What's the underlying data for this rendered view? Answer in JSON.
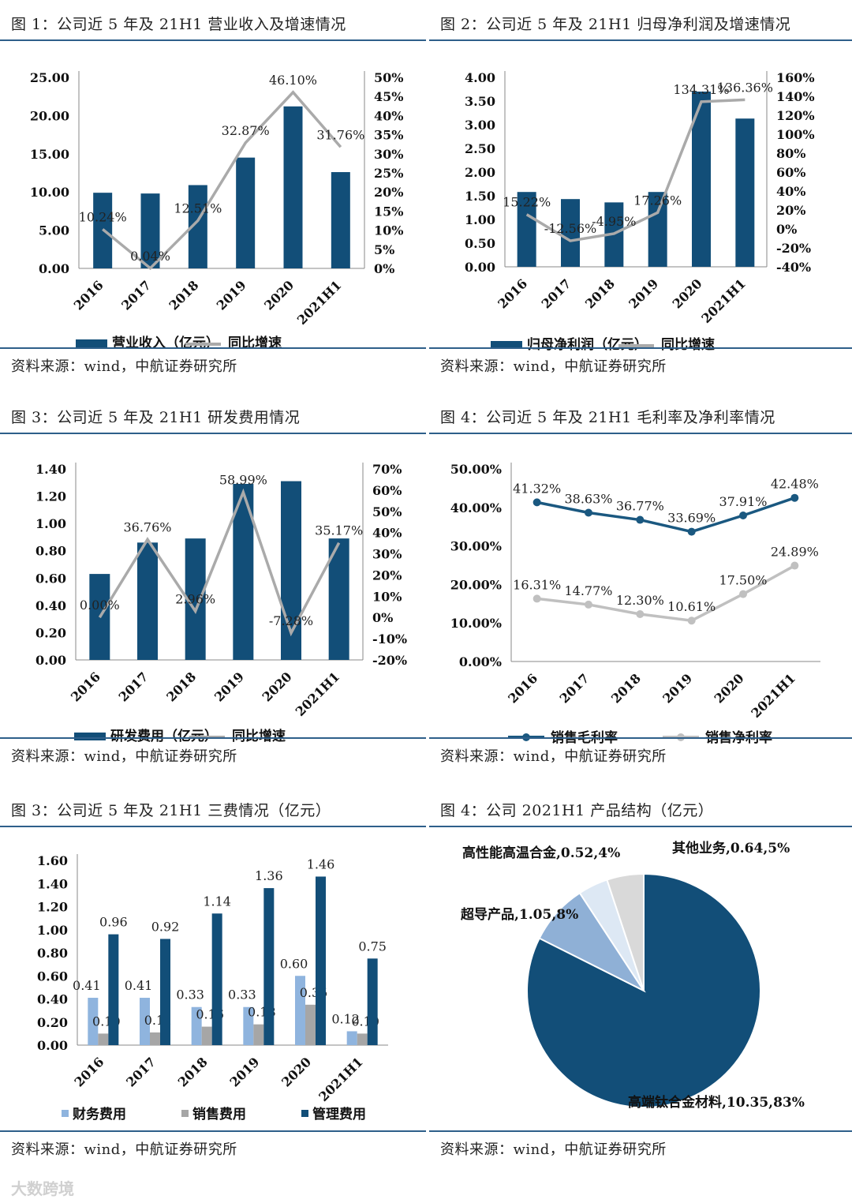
{
  "chart_data": [
    {
      "id": "c1",
      "type": "bar",
      "title": "图 1：公司近 5 年及 21H1 营业收入及增速情况",
      "source": "资料来源：wind，中航证券研究所",
      "categories": [
        "2016",
        "2017",
        "2018",
        "2019",
        "2020",
        "2021H1"
      ],
      "left_ticks": [
        "25.00",
        "20.00",
        "15.00",
        "10.00",
        "5.00",
        "0.00"
      ],
      "right_ticks": [
        "50%",
        "45%",
        "40%",
        "35%",
        "30%",
        "25%",
        "20%",
        "15%",
        "10%",
        "5%",
        "0%"
      ],
      "ylim": [
        0,
        25
      ],
      "y2lim": [
        0,
        50
      ],
      "series": [
        {
          "name": "营业收入（亿元）",
          "kind": "bar",
          "axis": "left",
          "color": "#124e78",
          "values": [
            9.9,
            9.8,
            10.9,
            14.5,
            21.2,
            12.6
          ]
        },
        {
          "name": "同比增速",
          "kind": "line",
          "axis": "right",
          "color": "#aaaaaa",
          "values": [
            10.24,
            0.04,
            12.51,
            32.87,
            46.1,
            31.76
          ],
          "labels": [
            "10.24%",
            "0.04%",
            "12.51%",
            "32.87%",
            "46.10%",
            "31.76%"
          ]
        }
      ]
    },
    {
      "id": "c2",
      "type": "bar",
      "title": "图 2：公司近 5 年及 21H1 归母净利润及增速情况",
      "source": "资料来源：wind，中航证券研究所",
      "categories": [
        "2016",
        "2017",
        "2018",
        "2019",
        "2020",
        "2021H1"
      ],
      "left_ticks": [
        "4.00",
        "3.50",
        "3.00",
        "2.50",
        "2.00",
        "1.50",
        "1.00",
        "0.50",
        "0.00"
      ],
      "right_ticks": [
        "160%",
        "140%",
        "120%",
        "100%",
        "80%",
        "60%",
        "40%",
        "20%",
        "0%",
        "-20%",
        "-40%"
      ],
      "ylim": [
        0,
        4
      ],
      "y2lim": [
        -40,
        160
      ],
      "series": [
        {
          "name": "归母净利润（亿元）",
          "kind": "bar",
          "axis": "left",
          "color": "#124e78",
          "values": [
            1.58,
            1.43,
            1.36,
            1.58,
            3.7,
            3.13
          ]
        },
        {
          "name": "同比增速",
          "kind": "line",
          "axis": "right",
          "color": "#aaaaaa",
          "values": [
            15.22,
            -12.56,
            -4.95,
            17.26,
            134.31,
            136.36
          ],
          "labels": [
            "15.22%",
            "-12.56%",
            "-4.95%",
            "17.26%",
            "134.31%",
            "136.36%"
          ]
        }
      ]
    },
    {
      "id": "c3",
      "type": "bar",
      "title": "图 3：公司近 5 年及 21H1 研发费用情况",
      "source": "资料来源：wind，中航证券研究所",
      "categories": [
        "2016",
        "2017",
        "2018",
        "2019",
        "2020",
        "2021H1"
      ],
      "left_ticks": [
        "1.40",
        "1.20",
        "1.00",
        "0.80",
        "0.60",
        "0.40",
        "0.20",
        "0.00"
      ],
      "right_ticks": [
        "70%",
        "60%",
        "50%",
        "40%",
        "30%",
        "20%",
        "10%",
        "0%",
        "-10%",
        "-20%"
      ],
      "ylim": [
        0,
        1.4
      ],
      "y2lim": [
        -20,
        70
      ],
      "series": [
        {
          "name": "研发费用（亿元）",
          "kind": "bar",
          "axis": "left",
          "color": "#124e78",
          "values": [
            0.63,
            0.86,
            0.89,
            1.29,
            1.31,
            0.89
          ]
        },
        {
          "name": "同比增速",
          "kind": "line",
          "axis": "right",
          "color": "#aaaaaa",
          "values": [
            0.0,
            36.76,
            2.96,
            58.99,
            -7.28,
            35.17
          ],
          "labels": [
            "0.00%",
            "36.76%",
            "2.96%",
            "58.99%",
            "-7.28%",
            "35.17%"
          ]
        }
      ]
    },
    {
      "id": "c4",
      "type": "line",
      "title": "图 4：公司近 5 年及 21H1 毛利率及净利率情况",
      "source": "资料来源：wind，中航证券研究所",
      "categories": [
        "2016",
        "2017",
        "2018",
        "2019",
        "2020",
        "2021H1"
      ],
      "left_ticks": [
        "50.00%",
        "40.00%",
        "30.00%",
        "20.00%",
        "10.00%",
        "0.00%"
      ],
      "ylim": [
        0,
        50
      ],
      "series": [
        {
          "name": "销售毛利率",
          "kind": "line",
          "color": "#1a5880",
          "values": [
            41.32,
            38.63,
            36.77,
            33.69,
            37.91,
            42.48
          ],
          "labels": [
            "41.32%",
            "38.63%",
            "36.77%",
            "33.69%",
            "37.91%",
            "42.48%"
          ]
        },
        {
          "name": "销售净利率",
          "kind": "line",
          "color": "#c0c0c0",
          "values": [
            16.31,
            14.77,
            12.3,
            10.61,
            17.5,
            24.89
          ],
          "labels": [
            "16.31%",
            "14.77%",
            "12.30%",
            "10.61%",
            "17.50%",
            "24.89%"
          ]
        }
      ]
    },
    {
      "id": "c5",
      "type": "bar",
      "title": "图 3：公司近 5 年及 21H1 三费情况（亿元）",
      "source": "资料来源：wind，中航证券研究所",
      "categories": [
        "2016",
        "2017",
        "2018",
        "2019",
        "2020",
        "2021H1"
      ],
      "left_ticks": [
        "1.60",
        "1.40",
        "1.20",
        "1.00",
        "0.80",
        "0.60",
        "0.40",
        "0.20",
        "0.00"
      ],
      "ylim": [
        0,
        1.6
      ],
      "series": [
        {
          "name": "财务费用",
          "color": "#8fb4de",
          "values": [
            0.41,
            0.41,
            0.33,
            0.33,
            0.6,
            0.12
          ],
          "labels": [
            "0.41",
            "0.41",
            "0.33",
            "0.33",
            "0.60",
            "0.12"
          ]
        },
        {
          "name": "销售费用",
          "color": "#a6a6a6",
          "values": [
            0.1,
            0.11,
            0.16,
            0.18,
            0.35,
            0.1
          ],
          "labels": [
            "0.10",
            "0.11",
            "0.16",
            "0.18",
            "0.35",
            "0.10"
          ]
        },
        {
          "name": "管理费用",
          "color": "#124e78",
          "values": [
            0.96,
            0.92,
            1.14,
            1.36,
            1.46,
            0.75
          ],
          "labels": [
            "0.96",
            "0.92",
            "1.14",
            "1.36",
            "1.46",
            "0.75"
          ]
        }
      ]
    },
    {
      "id": "c6",
      "type": "pie",
      "title": "图 4：公司 2021H1 产品结构（亿元）",
      "source": "资料来源：wind，中航证券研究所",
      "slices": [
        {
          "name": "高端钛合金材料",
          "value": 10.35,
          "percent": 83,
          "label": "高端钛合金材料,10.35,83%",
          "color": "#124e78"
        },
        {
          "name": "超导产品",
          "value": 1.05,
          "percent": 8,
          "label": "超导产品,1.05,8%",
          "color": "#8fb0d6"
        },
        {
          "name": "高性能高温合金",
          "value": 0.52,
          "percent": 4,
          "label": "高性能高温合金,0.52,4%",
          "color": "#dde8f4"
        },
        {
          "name": "其他业务",
          "value": 0.64,
          "percent": 5,
          "label": "其他业务,0.64,5%",
          "color": "#d9d9d9"
        }
      ]
    }
  ],
  "watermark": "大数跨境"
}
